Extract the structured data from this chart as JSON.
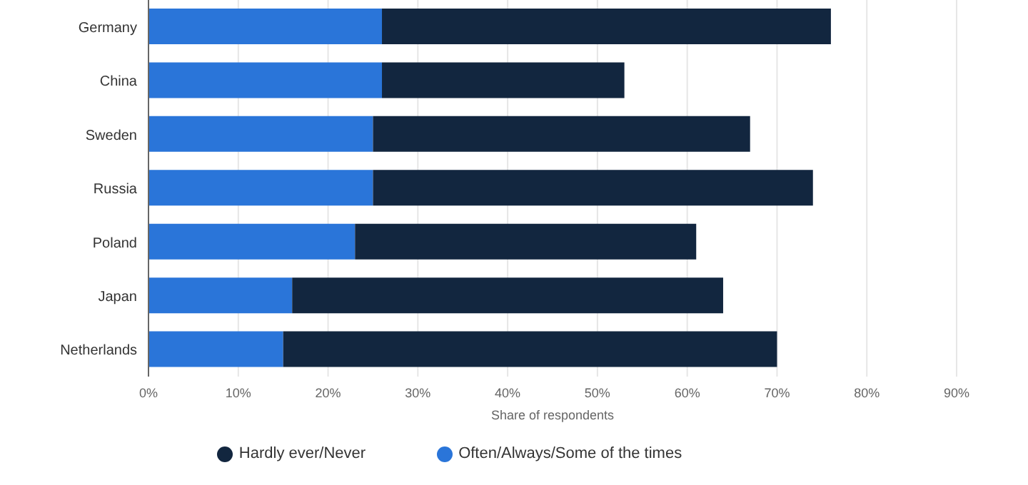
{
  "chart_data": {
    "type": "bar",
    "orientation": "horizontal",
    "stacked": true,
    "xlabel": "Share of respondents",
    "categories": [
      "Germany",
      "China",
      "Sweden",
      "Russia",
      "Poland",
      "Japan",
      "Netherlands"
    ],
    "series": [
      {
        "name": "Often/Always/Some of the times",
        "color": "#2a75d9",
        "values": [
          26,
          26,
          25,
          25,
          23,
          16,
          15
        ]
      },
      {
        "name": "Hardly ever/Never",
        "color": "#12263f",
        "values": [
          50,
          27,
          42,
          49,
          38,
          48,
          55
        ]
      }
    ],
    "xlim": [
      0,
      90
    ],
    "xticks": [
      {
        "value": 0,
        "label": "0%"
      },
      {
        "value": 10,
        "label": "10%"
      },
      {
        "value": 20,
        "label": "20%"
      },
      {
        "value": 30,
        "label": "30%"
      },
      {
        "value": 40,
        "label": "40%"
      },
      {
        "value": 50,
        "label": "50%"
      },
      {
        "value": 60,
        "label": "60%"
      },
      {
        "value": 70,
        "label": "70%"
      },
      {
        "value": 80,
        "label": "80%"
      },
      {
        "value": 90,
        "label": "90%"
      }
    ],
    "grid": "x",
    "legend": "bottom"
  }
}
